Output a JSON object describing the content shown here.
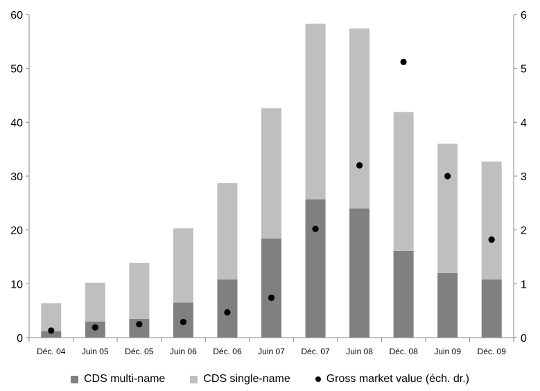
{
  "chart_data": {
    "type": "bar",
    "stacked": true,
    "categories": [
      "Déc. 04",
      "Juin 05",
      "Déc. 05",
      "Juin 06",
      "Déc. 06",
      "Juin 07",
      "Déc. 07",
      "Juin 08",
      "Déc. 08",
      "Juin 09",
      "Déc. 09"
    ],
    "series": [
      {
        "name": "CDS multi-name",
        "kind": "bar",
        "color": "#808080",
        "values": [
          1.2,
          3.0,
          3.5,
          6.5,
          10.8,
          18.4,
          25.7,
          24.0,
          16.1,
          12.0,
          10.8
        ]
      },
      {
        "name": "CDS single-name",
        "kind": "bar",
        "color": "#bfbfbf",
        "values": [
          5.2,
          7.2,
          10.4,
          13.8,
          17.9,
          24.2,
          32.6,
          33.4,
          25.8,
          24.0,
          21.9
        ]
      },
      {
        "name": "Gross market value (éch. dr.)",
        "kind": "scatter",
        "axis": "right",
        "color": "#000000",
        "values": [
          0.13,
          0.19,
          0.25,
          0.29,
          0.47,
          0.74,
          2.02,
          3.2,
          5.12,
          3.0,
          1.82
        ]
      }
    ],
    "ylim_left": [
      0,
      60
    ],
    "yticks_left": [
      0,
      10,
      20,
      30,
      40,
      50,
      60
    ],
    "ylim_right": [
      0,
      6
    ],
    "yticks_right": [
      0,
      1,
      2,
      3,
      4,
      5,
      6
    ],
    "grid": false,
    "legend": "bottom"
  }
}
